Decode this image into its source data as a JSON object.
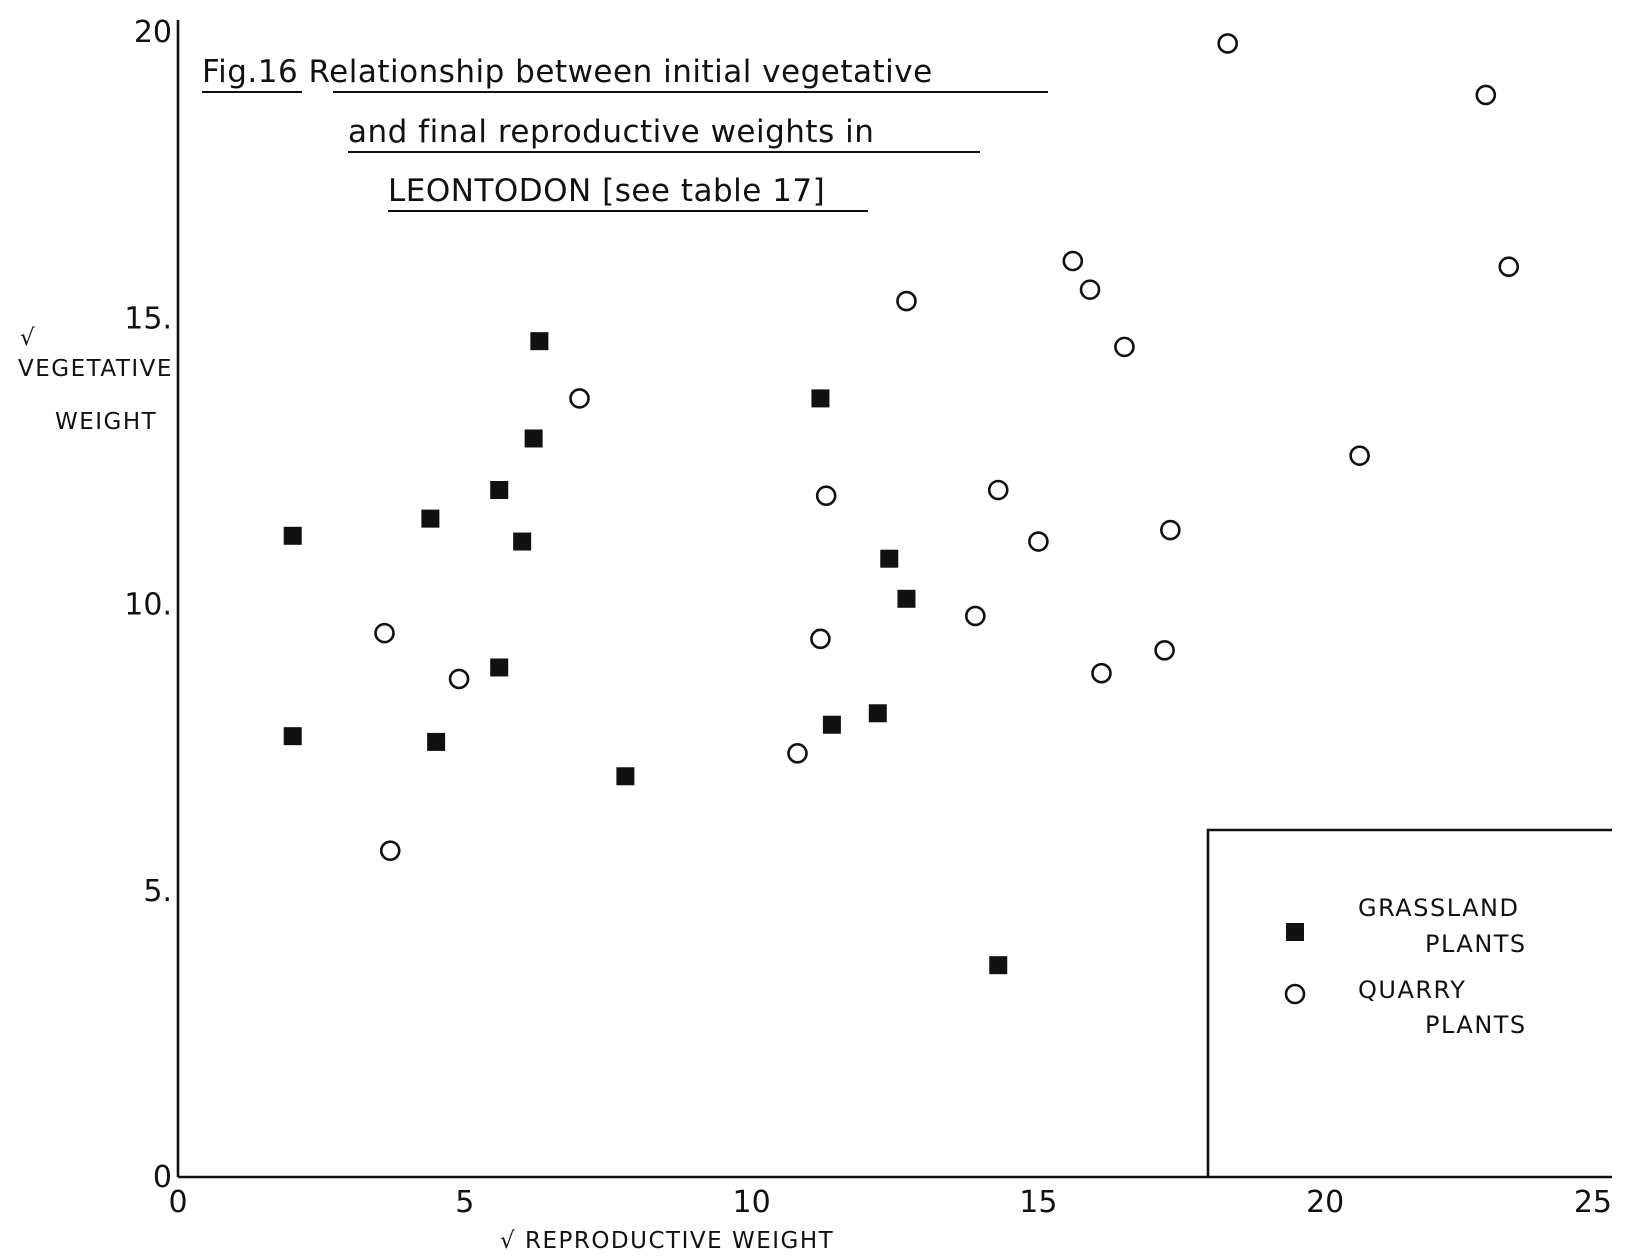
{
  "chart_data": {
    "type": "scatter",
    "title": [
      "Fig.16  Relationship between initial vegetative",
      "and final reproductive weights in",
      "LEONTODON [see table 17]"
    ],
    "xlabel": "√ REPRODUCTIVE WEIGHT",
    "ylabel": [
      "√",
      "VEGETATIVE",
      "WEIGHT"
    ],
    "xlim": [
      0,
      25
    ],
    "ylim": [
      0,
      20
    ],
    "xticks": [
      0,
      5,
      10,
      15,
      20,
      25
    ],
    "yticks": [
      0,
      5,
      10,
      15,
      20
    ],
    "xtick_labels": [
      "0",
      "5",
      "10",
      "15",
      "20",
      "25"
    ],
    "ytick_labels": [
      "0",
      "5.",
      "10.",
      "15.",
      "20"
    ],
    "grid": false,
    "legend_position": "bottom-right",
    "series": [
      {
        "name": "GRASSLAND PLANTS",
        "legend_lines": [
          "GRASSLAND",
          "PLANTS"
        ],
        "marker": "filled-square",
        "points": [
          [
            2.0,
            11.2
          ],
          [
            2.0,
            7.7
          ],
          [
            4.4,
            11.5
          ],
          [
            4.5,
            7.6
          ],
          [
            5.6,
            12.0
          ],
          [
            5.6,
            8.9
          ],
          [
            6.0,
            11.1
          ],
          [
            6.2,
            12.9
          ],
          [
            6.3,
            14.6
          ],
          [
            7.8,
            7.0
          ],
          [
            11.2,
            13.6
          ],
          [
            11.4,
            7.9
          ],
          [
            12.2,
            8.1
          ],
          [
            12.4,
            10.8
          ],
          [
            12.7,
            10.1
          ],
          [
            14.3,
            3.7
          ]
        ]
      },
      {
        "name": "QUARRY PLANTS",
        "legend_lines": [
          "QUARRY",
          "PLANTS"
        ],
        "marker": "open-circle",
        "points": [
          [
            3.6,
            9.5
          ],
          [
            3.7,
            5.7
          ],
          [
            4.9,
            8.7
          ],
          [
            7.0,
            13.6
          ],
          [
            10.8,
            7.4
          ],
          [
            11.2,
            9.4
          ],
          [
            11.3,
            11.9
          ],
          [
            12.7,
            15.3
          ],
          [
            13.9,
            9.8
          ],
          [
            14.3,
            12.0
          ],
          [
            15.0,
            11.1
          ],
          [
            15.6,
            16.0
          ],
          [
            15.9,
            15.5
          ],
          [
            16.1,
            8.8
          ],
          [
            16.5,
            14.5
          ],
          [
            17.2,
            9.2
          ],
          [
            17.3,
            11.3
          ],
          [
            18.3,
            19.8
          ],
          [
            20.6,
            12.6
          ],
          [
            22.8,
            18.9
          ],
          [
            23.2,
            15.9
          ]
        ]
      }
    ]
  }
}
